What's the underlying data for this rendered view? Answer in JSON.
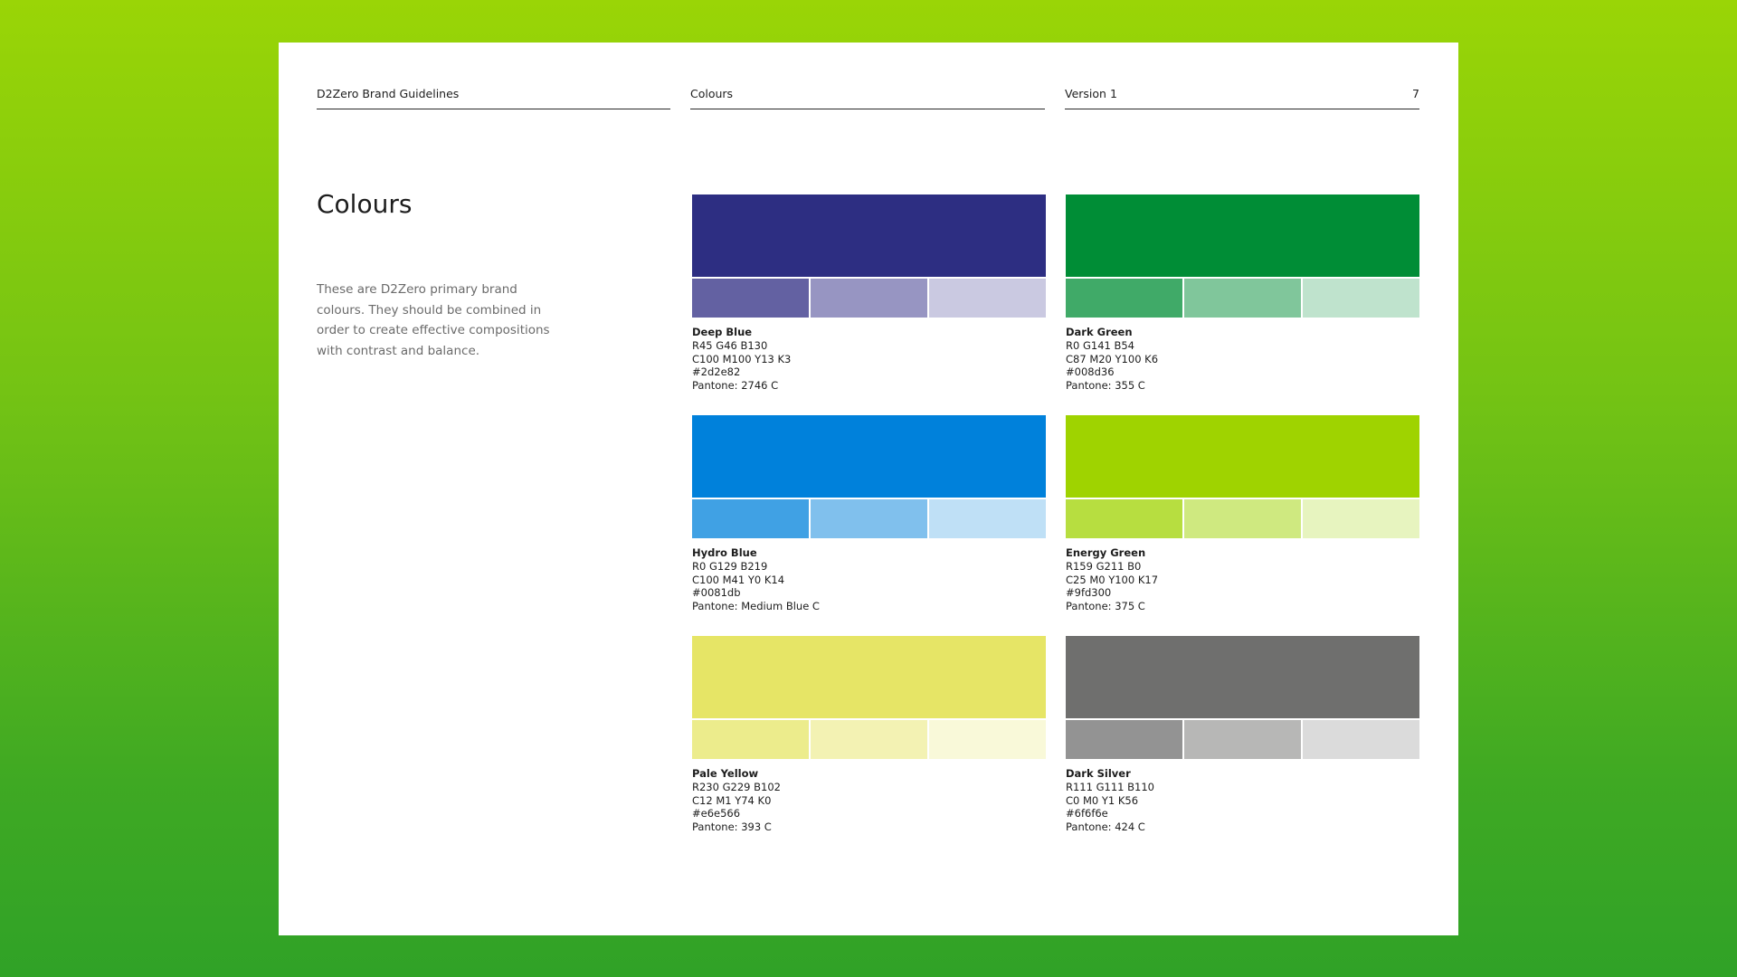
{
  "header": {
    "doc_title": "D2Zero Brand Guidelines",
    "section": "Colours",
    "version": "Version 1",
    "page_number": "7"
  },
  "title": "Colours",
  "description": "These are D2Zero primary brand colours. They should be combined in order to create effective compositions with contrast and balance.",
  "swatches": [
    {
      "name": "Deep Blue",
      "rgb": "R45 G46 B130",
      "cmyk": "C100 M100 Y13 K3",
      "hex": "#2d2e82",
      "pantone": "Pantone: 2746 C",
      "color": "#2d2e82",
      "tints": [
        "#6361a2",
        "#9795c2",
        "#cac9e1"
      ]
    },
    {
      "name": "Dark Green",
      "rgb": "R0 G141 B54",
      "cmyk": "C87 M20 Y100 K6",
      "hex": "#008d36",
      "pantone": "Pantone: 355 C",
      "color": "#008d36",
      "tints": [
        "#40aa68",
        "#80c69b",
        "#bfe3cd"
      ]
    },
    {
      "name": "Hydro Blue",
      "rgb": "R0 G129 B219",
      "cmyk": "C100 M41 Y0 K14",
      "hex": "#0081db",
      "pantone": "Pantone: Medium Blue C",
      "color": "#0081db",
      "tints": [
        "#40a1e4",
        "#80c0ed",
        "#bfe0f6"
      ]
    },
    {
      "name": "Energy Green",
      "rgb": "R159 G211 B0",
      "cmyk": "C25 M0 Y100 K17",
      "hex": "#9fd300",
      "pantone": "Pantone: 375 C",
      "color": "#9fd300",
      "tints": [
        "#b7de40",
        "#cfe980",
        "#e7f4bf"
      ]
    },
    {
      "name": "Pale Yellow",
      "rgb": "R230 G229 B102",
      "cmyk": "C12 M1 Y74 K0",
      "hex": "#e6e566",
      "pantone": "Pantone: 393 C",
      "color": "#e6e566",
      "tints": [
        "#ecec8c",
        "#f3f2b3",
        "#f9f9d9"
      ]
    },
    {
      "name": "Dark Silver",
      "rgb": "R111 G111 B110",
      "cmyk": "C0 M0 Y1 K56",
      "hex": "#6f6f6e",
      "pantone": "Pantone: 424 C",
      "color": "#6f6f6e",
      "tints": [
        "#939393",
        "#b7b7b6",
        "#dbdbdb"
      ]
    }
  ]
}
